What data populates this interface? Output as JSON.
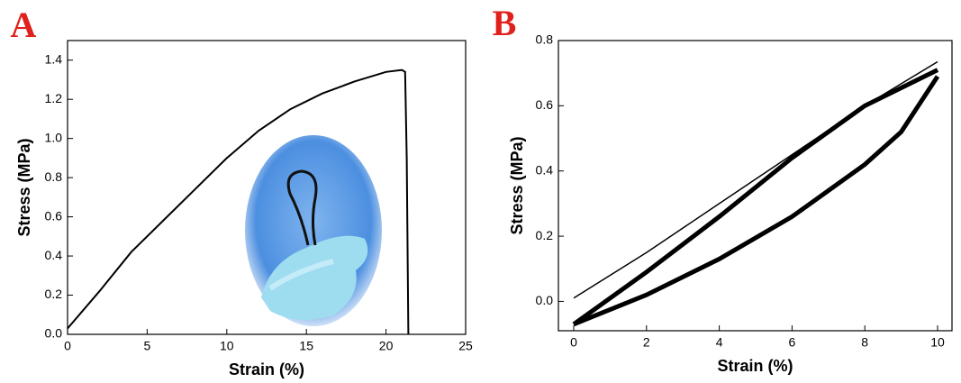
{
  "chart_data": [
    {
      "type": "line",
      "label": "A",
      "xlabel": "Strain (%)",
      "ylabel": "Stress (MPa)",
      "xlim": [
        0,
        25
      ],
      "ylim": [
        0,
        1.5
      ],
      "xticks": [
        0,
        5,
        10,
        15,
        20,
        25
      ],
      "yticks": [
        {
          "value": 0,
          "label": "0.0"
        },
        0.2,
        0.4,
        0.6,
        0.8,
        {
          "value": 1,
          "label": "1.0"
        },
        1.2,
        1.4
      ],
      "series": [
        {
          "color": "#000000",
          "x": [
            0,
            2,
            4,
            6,
            8,
            10,
            12,
            14,
            16,
            18,
            20,
            21,
            21.2,
            21.3,
            21.4
          ],
          "values": [
            0.03,
            0.22,
            0.42,
            0.58,
            0.74,
            0.9,
            1.04,
            1.15,
            1.23,
            1.29,
            1.34,
            1.35,
            1.34,
            0.9,
            0
          ]
        }
      ]
    },
    {
      "type": "line",
      "label": "B",
      "xlabel": "Strain (%)",
      "ylabel": "Stress (MPa)",
      "xlim": [
        0,
        10
      ],
      "ylim": [
        -0.09,
        0.8
      ],
      "xticks": [
        0,
        2,
        4,
        6,
        8,
        10
      ],
      "yticks": [
        {
          "value": 0,
          "label": "0.0"
        },
        0.2,
        0.4,
        0.6,
        0.8
      ],
      "series": [
        {
          "color": "#000000",
          "x": [
            0,
            2,
            4,
            6,
            8,
            10
          ],
          "values": [
            0.01,
            0.15,
            0.3,
            0.45,
            0.6,
            0.735
          ]
        },
        {
          "color": "#000000",
          "x": [
            0,
            2,
            4,
            6,
            8,
            10
          ],
          "values": [
            -0.07,
            0.09,
            0.26,
            0.44,
            0.6,
            0.71
          ]
        },
        {
          "color": "#000000",
          "x": [
            10,
            9,
            8,
            6,
            4,
            2,
            0
          ],
          "values": [
            0.69,
            0.52,
            0.42,
            0.26,
            0.13,
            0.02,
            -0.07
          ]
        }
      ]
    }
  ]
}
